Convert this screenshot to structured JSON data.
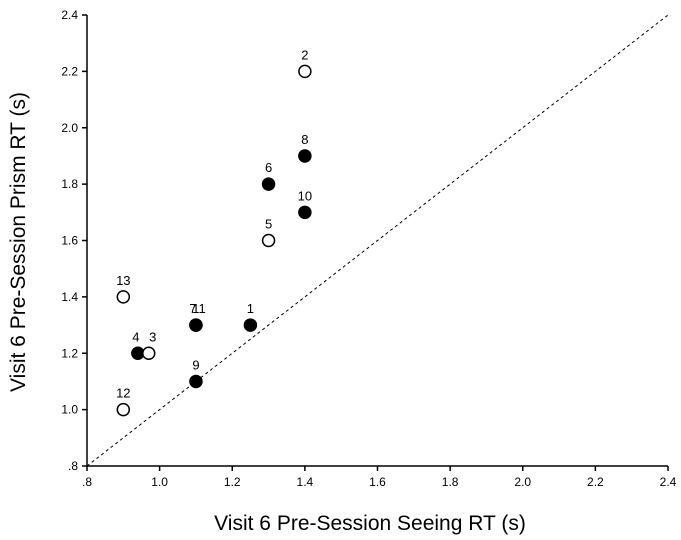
{
  "chart_data": {
    "type": "scatter",
    "title": "",
    "xlabel": "Visit 6 Pre-Session Seeing RT (s)",
    "ylabel": "Visit 6 Pre-Session Prism RT (s)",
    "xlim": [
      0.8,
      2.4
    ],
    "ylim": [
      0.8,
      2.4
    ],
    "x_ticks": [
      0.8,
      1.0,
      1.2,
      1.4,
      1.6,
      1.8,
      2.0,
      2.2,
      2.4
    ],
    "x_tick_labels": [
      ".8",
      "1.0",
      "1.2",
      "1.4",
      "1.6",
      "1.8",
      "2.0",
      "2.2",
      "2.4"
    ],
    "y_ticks": [
      0.8,
      1.0,
      1.2,
      1.4,
      1.6,
      1.8,
      2.0,
      2.2,
      2.4
    ],
    "y_tick_labels": [
      ".8",
      "1.0",
      "1.2",
      "1.4",
      "1.6",
      "1.8",
      "2.0",
      "2.2",
      "2.4"
    ],
    "reference_line": "identity (y = x), dashed",
    "grid": false,
    "marker_colors": {
      "filled": "#000000",
      "open": "#ffffff"
    },
    "points": [
      {
        "label": "2",
        "x": 1.4,
        "y": 2.2,
        "marker": "open"
      },
      {
        "label": "8",
        "x": 1.4,
        "y": 1.9,
        "marker": "filled"
      },
      {
        "label": "6",
        "x": 1.3,
        "y": 1.8,
        "marker": "filled"
      },
      {
        "label": "10",
        "x": 1.4,
        "y": 1.7,
        "marker": "filled"
      },
      {
        "label": "5",
        "x": 1.3,
        "y": 1.6,
        "marker": "open"
      },
      {
        "label": "13",
        "x": 0.9,
        "y": 1.4,
        "marker": "open"
      },
      {
        "label": "7",
        "x": 1.1,
        "y": 1.3,
        "marker": "filled"
      },
      {
        "label": "11",
        "x": 1.1,
        "y": 1.3,
        "marker": "filled"
      },
      {
        "label": "1",
        "x": 1.25,
        "y": 1.3,
        "marker": "filled"
      },
      {
        "label": "4",
        "x": 0.94,
        "y": 1.2,
        "marker": "filled"
      },
      {
        "label": "3",
        "x": 0.97,
        "y": 1.2,
        "marker": "open"
      },
      {
        "label": "9",
        "x": 1.1,
        "y": 1.1,
        "marker": "filled"
      },
      {
        "label": "12",
        "x": 0.9,
        "y": 1.0,
        "marker": "open"
      }
    ]
  }
}
